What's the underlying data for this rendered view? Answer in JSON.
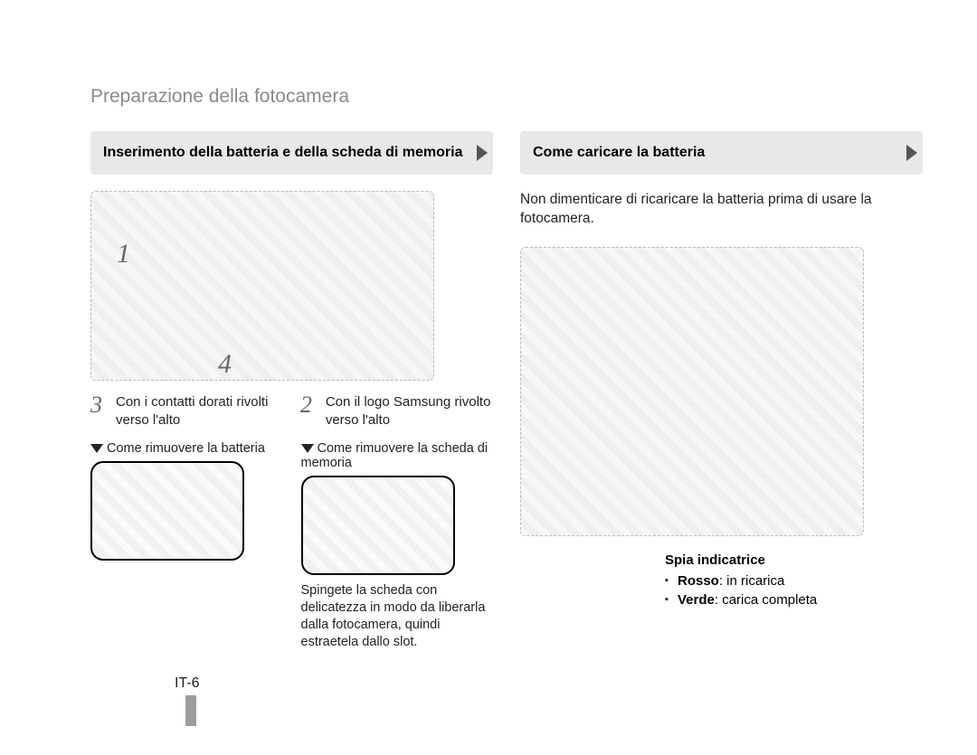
{
  "page": {
    "title": "Preparazione della fotocamera",
    "number": "IT-6"
  },
  "left": {
    "heading": "Inserimento della batteria e della scheda di memoria",
    "main_figure_alt": "camera battery/memory insertion diagram",
    "overlay_numbers": {
      "one": "1",
      "four": "4"
    },
    "steps": {
      "three": {
        "num": "3",
        "text": "Con i contatti dorati rivolti verso l'alto"
      },
      "two": {
        "num": "2",
        "text": "Con il logo Samsung rivolto verso l'alto"
      }
    },
    "remove_battery": {
      "heading": "Come rimuovere la batteria",
      "figure_alt": "remove battery diagram"
    },
    "remove_card": {
      "heading": "Come rimuovere la scheda di memoria",
      "figure_alt": "remove memory card diagram",
      "note": "Spingete la scheda con delicatezza in modo da liberarla dalla fotocamera, quindi estraetela dallo slot."
    }
  },
  "right": {
    "heading": "Come caricare la batteria",
    "intro": "Non dimenticare di ricaricare la batteria prima di usare la fotocamera.",
    "figure_alt": "camera connected to wall charger diagram",
    "indicator": {
      "title": "Spia indicatrice",
      "items": [
        {
          "label": "Rosso",
          "desc": ": in ricarica"
        },
        {
          "label": "Verde",
          "desc": ": carica completa"
        }
      ]
    }
  },
  "colors": {
    "title_gray": "#8a8a8a",
    "header_bg": "#e8e8e8",
    "arrow_fill": "#555555",
    "bar_gray": "#9c9c9c"
  }
}
